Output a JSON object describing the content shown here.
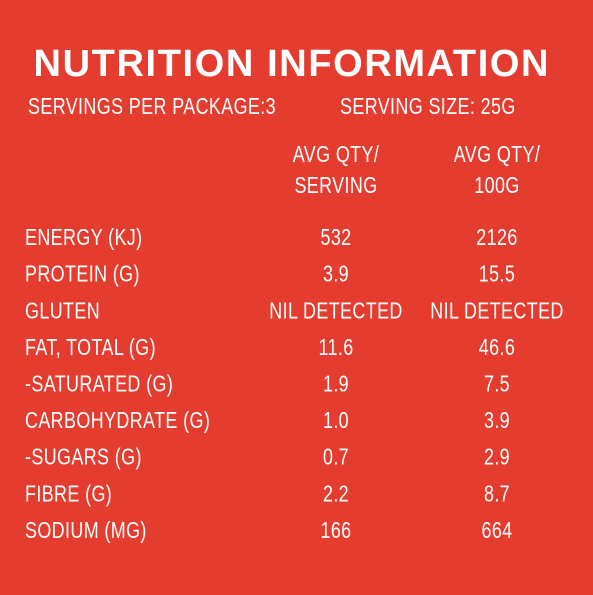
{
  "title": "NUTRITION INFORMATION",
  "subtitle": {
    "servings": "SERVINGS PER PACKAGE:3",
    "serving_size": "SERVING SIZE: 25G"
  },
  "table": {
    "headers": [
      [
        "AVG QTY/",
        "SERVING"
      ],
      [
        "AVG QTY/",
        "100G"
      ]
    ],
    "rows": [
      [
        "ENERGY (KJ)",
        "532",
        "2126"
      ],
      [
        "PROTEIN (G)",
        "3.9",
        "15.5"
      ],
      [
        "GLUTEN",
        "NIL DETECTED",
        "NIL DETECTED"
      ],
      [
        "FAT, TOTAL (G)",
        "11.6",
        "46.6"
      ],
      [
        "-SATURATED (G)",
        "1.9",
        "7.5"
      ],
      [
        "CARBOHYDRATE (G)",
        "1.0",
        "3.9"
      ],
      [
        "-SUGARS (G)",
        "0.7",
        "2.9"
      ],
      [
        "FIBRE (G)",
        "2.2",
        "8.7"
      ],
      [
        "SODIUM (MG)",
        "166",
        "664"
      ]
    ]
  }
}
